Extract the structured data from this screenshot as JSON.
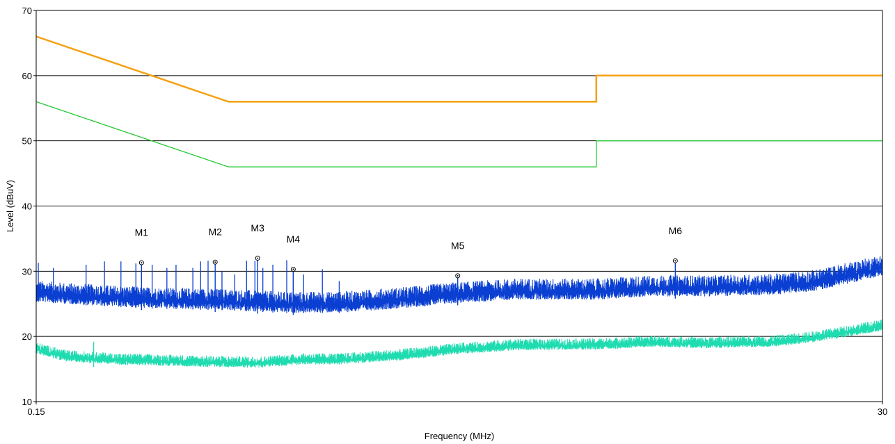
{
  "chart_data": {
    "type": "line",
    "title": "",
    "xlabel": "Frequency (MHz)",
    "ylabel": "Level (dBuV)",
    "xscale": "log",
    "xlim": [
      0.15,
      30
    ],
    "ylim": [
      10,
      70
    ],
    "x_tick_labels": [
      "0.15",
      "30"
    ],
    "y_ticks": [
      10,
      20,
      30,
      40,
      50,
      60,
      70
    ],
    "grid": "horizontal",
    "legend": "none",
    "colors": {
      "quasi_peak_limit": "#f5a012",
      "average_limit": "#22c832",
      "peak_trace": "#0a3fd2",
      "average_trace": "#1fdcb0",
      "gridline": "#000000"
    },
    "series": [
      {
        "key": "quasi_peak_limit",
        "style": "limit",
        "points": [
          [
            0.15,
            66
          ],
          [
            0.5,
            56
          ],
          [
            5,
            56
          ],
          [
            5,
            60
          ],
          [
            30,
            60
          ]
        ]
      },
      {
        "key": "average_limit",
        "style": "limit",
        "points": [
          [
            0.15,
            56
          ],
          [
            0.5,
            46
          ],
          [
            5,
            46
          ],
          [
            5,
            50
          ],
          [
            30,
            50
          ]
        ]
      },
      {
        "key": "peak_trace",
        "style": "noisy",
        "noise": 2.6,
        "profile": [
          [
            0.15,
            26.5
          ],
          [
            0.2,
            26.0
          ],
          [
            0.3,
            25.5
          ],
          [
            0.5,
            25.2
          ],
          [
            0.7,
            24.8
          ],
          [
            1.0,
            24.8
          ],
          [
            1.5,
            25.5
          ],
          [
            2.0,
            26.2
          ],
          [
            3.0,
            26.8
          ],
          [
            4.0,
            26.8
          ],
          [
            5.0,
            26.8
          ],
          [
            7.0,
            27.3
          ],
          [
            10.0,
            27.3
          ],
          [
            15.0,
            27.5
          ],
          [
            20.0,
            28.2
          ],
          [
            30.0,
            30.5
          ]
        ],
        "spikes": [
          [
            0.152,
            31.3
          ],
          [
            0.167,
            30.5
          ],
          [
            0.205,
            31.0
          ],
          [
            0.23,
            31.5
          ],
          [
            0.255,
            31.5
          ],
          [
            0.28,
            31.2
          ],
          [
            0.31,
            31.0
          ],
          [
            0.34,
            30.5
          ],
          [
            0.36,
            31.0
          ],
          [
            0.4,
            30.5
          ],
          [
            0.42,
            31.5
          ],
          [
            0.44,
            31.6
          ],
          [
            0.48,
            30.0
          ],
          [
            0.52,
            29.5
          ],
          [
            0.56,
            31.6
          ],
          [
            0.59,
            31.6
          ],
          [
            0.62,
            30.5
          ],
          [
            0.66,
            31.0
          ],
          [
            0.72,
            31.7
          ],
          [
            0.75,
            30.0
          ],
          [
            0.8,
            29.5
          ],
          [
            0.9,
            30.3
          ],
          [
            1.0,
            28.5
          ]
        ]
      },
      {
        "key": "average_trace",
        "style": "noisy",
        "noise": 1.4,
        "profile": [
          [
            0.15,
            18.0
          ],
          [
            0.18,
            16.8
          ],
          [
            0.25,
            16.3
          ],
          [
            0.4,
            16.0
          ],
          [
            0.6,
            15.8
          ],
          [
            0.8,
            16.3
          ],
          [
            1.0,
            16.3
          ],
          [
            1.5,
            17.0
          ],
          [
            2.0,
            17.8
          ],
          [
            3.0,
            18.5
          ],
          [
            5.0,
            18.6
          ],
          [
            7.0,
            19.0
          ],
          [
            10.0,
            18.8
          ],
          [
            15.0,
            19.0
          ],
          [
            20.0,
            19.8
          ],
          [
            30.0,
            21.5
          ]
        ],
        "spikes": [
          [
            0.215,
            19.2
          ]
        ]
      }
    ],
    "markers": [
      {
        "label": "M1",
        "x": 0.29,
        "y": 31.3
      },
      {
        "label": "M2",
        "x": 0.46,
        "y": 31.4
      },
      {
        "label": "M3",
        "x": 0.6,
        "y": 32.0
      },
      {
        "label": "M4",
        "x": 0.75,
        "y": 30.3
      },
      {
        "label": "M5",
        "x": 2.1,
        "y": 29.3
      },
      {
        "label": "M6",
        "x": 8.2,
        "y": 31.6
      }
    ]
  }
}
